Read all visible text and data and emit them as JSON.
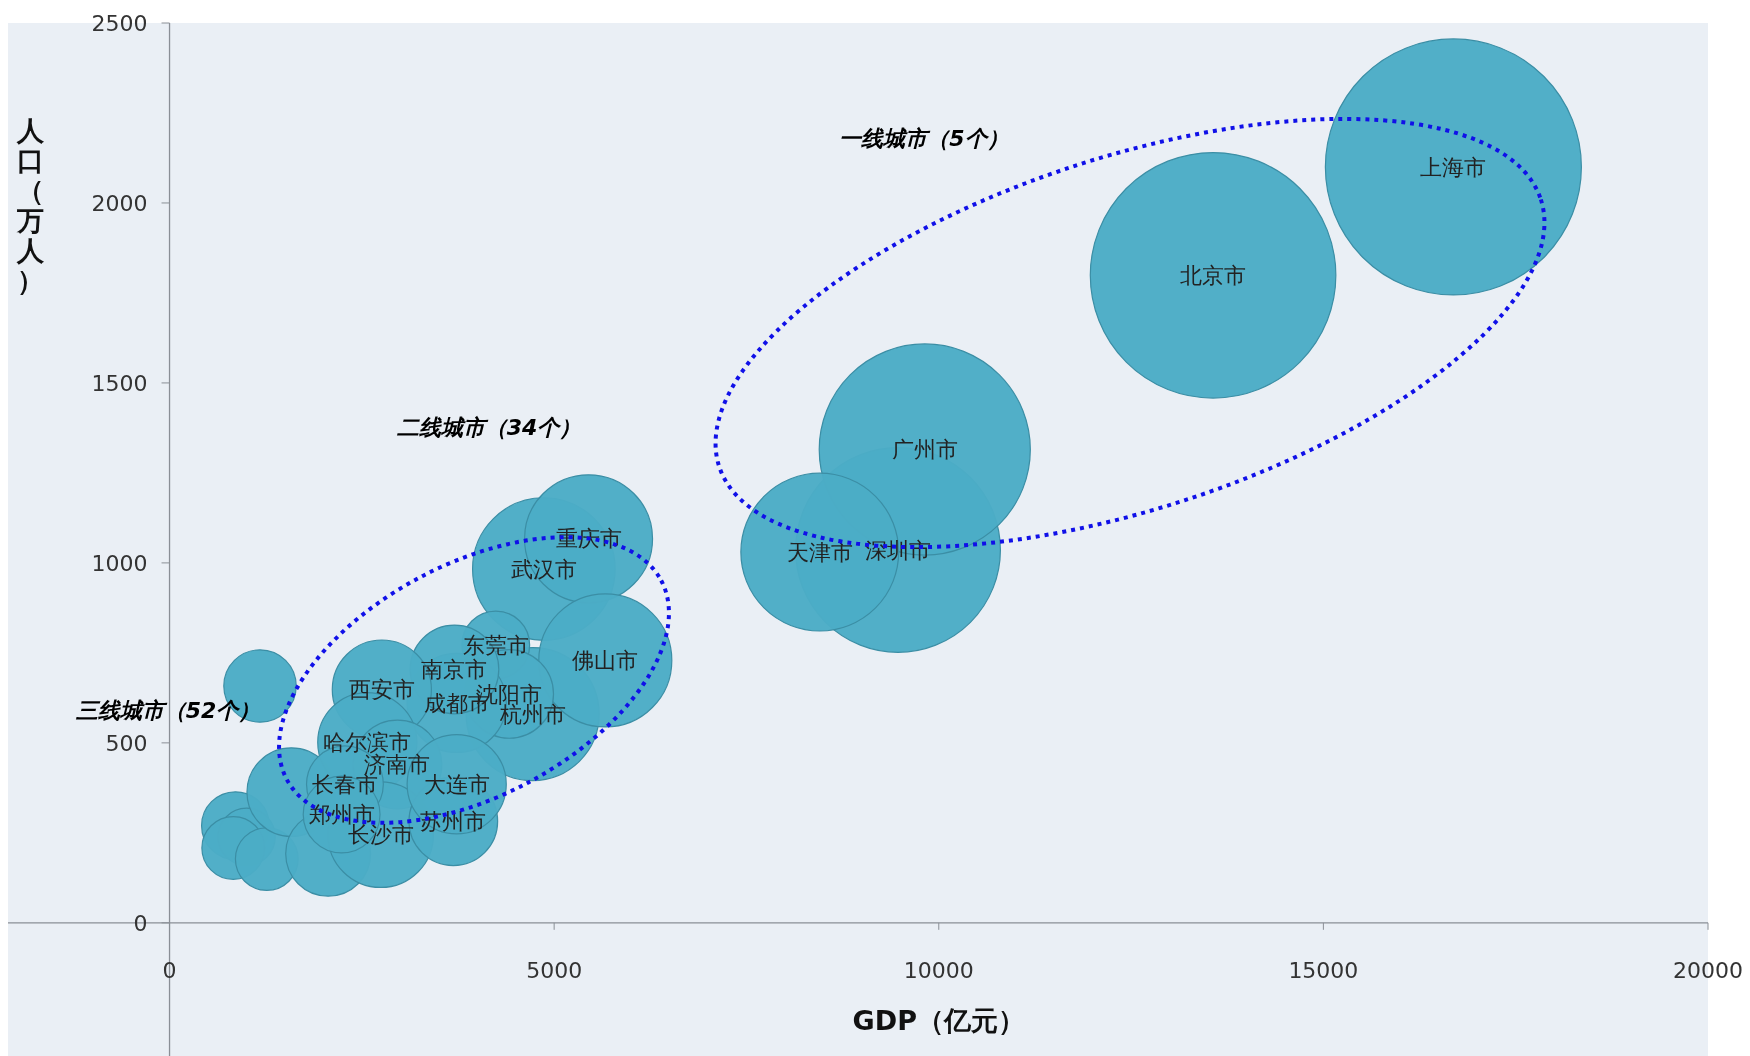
{
  "chart_data": {
    "type": "bubble",
    "xlabel": "GDP（亿元）",
    "ylabel": "人口（万人）",
    "xlim": [
      -2100,
      20000
    ],
    "ylim": [
      -370,
      2500
    ],
    "xticks": [
      0,
      5000,
      10000,
      15000,
      20000
    ],
    "yticks": [
      0,
      500,
      1000,
      1500,
      2000,
      2500
    ],
    "grid": false,
    "annotations": [
      "一线城市（5个）",
      "二线城市（34个）",
      "三线城市（52个）"
    ],
    "series": [
      {
        "name": null,
        "color": "#4bacc6",
        "x": [
          857,
          1002,
          828,
          1264,
          1583,
          2062,
          1176
        ],
        "values": [
          270,
          239,
          208,
          177,
          363,
          192,
          658
        ],
        "sizes": [
          0.07,
          0.05,
          0.06,
          0.06,
          0.12,
          0.11,
          0.08
        ]
      },
      {
        "name": "上海市",
        "color": "#4bacc6",
        "x": [
          16690
        ],
        "values": [
          2100
        ],
        "sizes": [
          1
        ]
      },
      {
        "name": "北京市",
        "color": "#4bacc6",
        "x": [
          13566
        ],
        "values": [
          1799
        ],
        "sizes": [
          0.92
        ]
      },
      {
        "name": "深圳市",
        "color": "#4bacc6",
        "x": [
          9470
        ],
        "values": [
          1036
        ],
        "sizes": [
          0.64
        ]
      },
      {
        "name": "广州市",
        "color": "#4bacc6",
        "x": [
          9818
        ],
        "values": [
          1315
        ],
        "sizes": [
          0.68
        ]
      },
      {
        "name": "天津市",
        "color": "#4bacc6",
        "x": [
          8453
        ],
        "values": [
          1030
        ],
        "sizes": [
          0.38
        ]
      },
      {
        "name": "武汉市",
        "color": "#4bacc6",
        "x": [
          4866
        ],
        "values": [
          983
        ],
        "sizes": [
          0.31
        ]
      },
      {
        "name": "重庆市",
        "color": "#4bacc6",
        "x": [
          5447
        ],
        "values": [
          1067
        ],
        "sizes": [
          0.25
        ]
      },
      {
        "name": "杭州市",
        "color": "#4bacc6",
        "x": [
          4720
        ],
        "values": [
          580
        ],
        "sizes": [
          0.27
        ]
      },
      {
        "name": "佛山市",
        "color": "#4bacc6",
        "x": [
          5665
        ],
        "values": [
          729
        ],
        "sizes": [
          0.27
        ]
      },
      {
        "name": "东莞市",
        "color": "#4bacc6",
        "x": [
          4241
        ],
        "values": [
          772
        ],
        "sizes": [
          0.07
        ]
      },
      {
        "name": "沈阳市",
        "color": "#4bacc6",
        "x": [
          4415
        ],
        "values": [
          636
        ],
        "sizes": [
          0.12
        ]
      },
      {
        "name": "成都市",
        "color": "#4bacc6",
        "x": [
          3733
        ],
        "values": [
          611
        ],
        "sizes": [
          0.15
        ]
      },
      {
        "name": "南京市",
        "color": "#4bacc6",
        "x": [
          3704
        ],
        "values": [
          704
        ],
        "sizes": [
          0.12
        ]
      },
      {
        "name": "西安市",
        "color": "#4bacc6",
        "x": [
          2760
        ],
        "values": [
          648
        ],
        "sizes": [
          0.15
        ]
      },
      {
        "name": "哈尔滨市",
        "color": "#4bacc6",
        "x": [
          2571
        ],
        "values": [
          502
        ],
        "sizes": [
          0.15
        ]
      },
      {
        "name": "济南市",
        "color": "#4bacc6",
        "x": [
          2963
        ],
        "values": [
          440
        ],
        "sizes": [
          0.12
        ]
      },
      {
        "name": "长沙市",
        "color": "#4bacc6",
        "x": [
          2745
        ],
        "values": [
          245
        ],
        "sizes": [
          0.17
        ]
      },
      {
        "name": "苏州市",
        "color": "#4bacc6",
        "x": [
          3689
        ],
        "values": [
          282
        ],
        "sizes": [
          0.12
        ]
      },
      {
        "name": "大连市",
        "color": "#4bacc6",
        "x": [
          3733
        ],
        "values": [
          385
        ],
        "sizes": [
          0.15
        ]
      },
      {
        "name": "长春市",
        "color": "#4bacc6",
        "x": [
          2280
        ],
        "values": [
          385
        ],
        "sizes": [
          0.09
        ]
      },
      {
        "name": "郑州市",
        "color": "#4bacc6",
        "x": [
          2237
        ],
        "values": [
          301
        ],
        "sizes": [
          0.09
        ]
      }
    ]
  }
}
